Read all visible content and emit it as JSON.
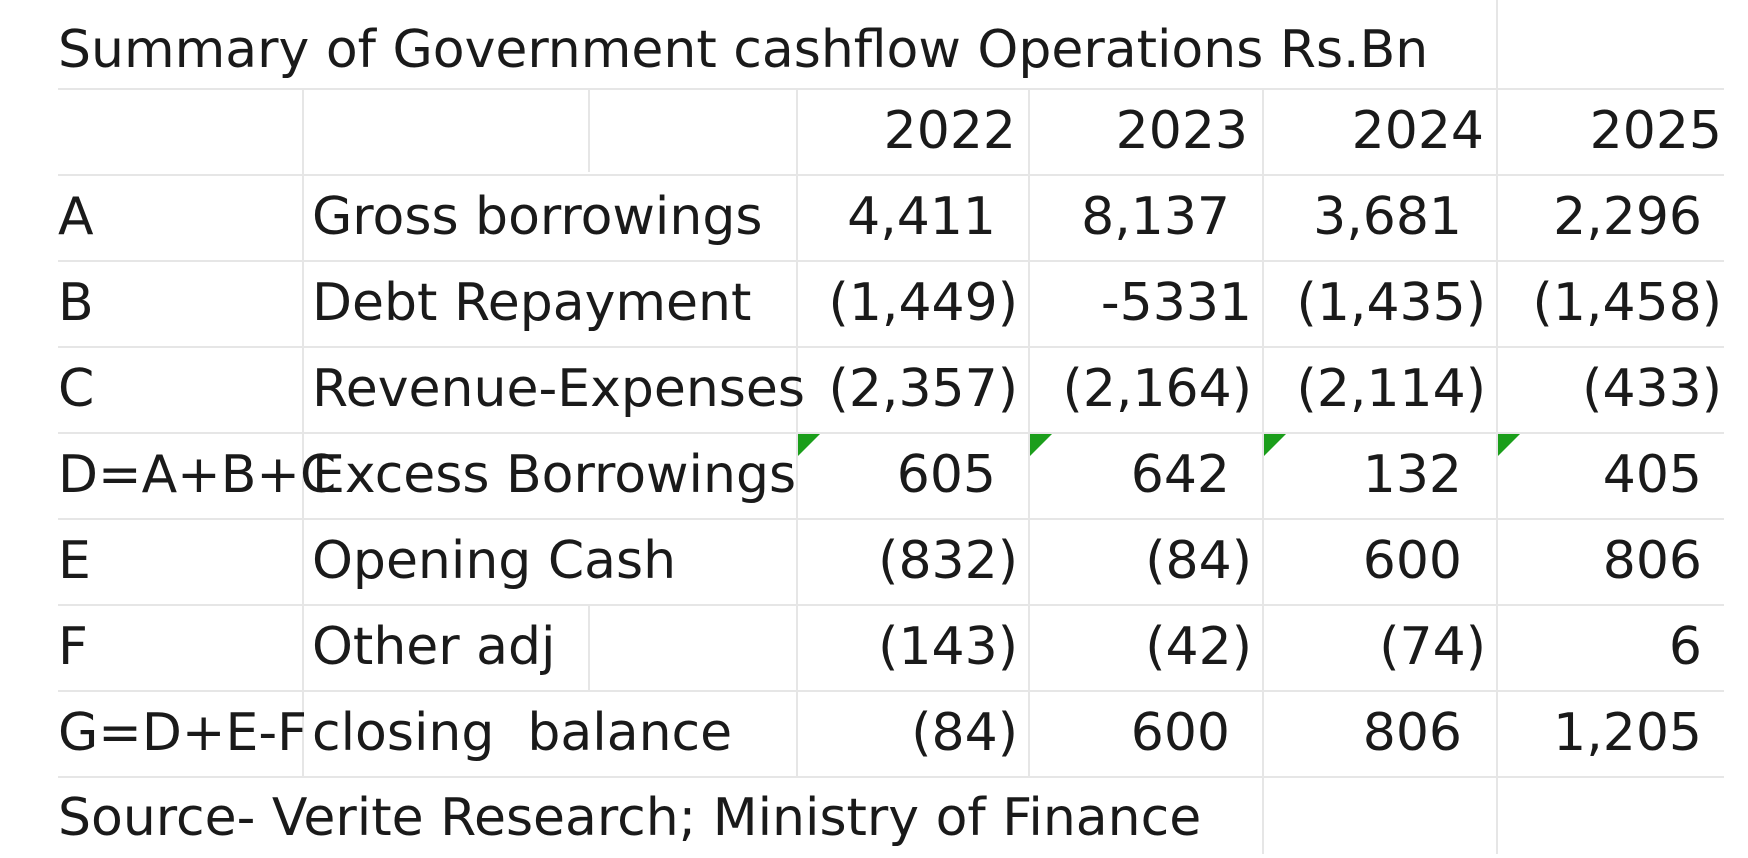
{
  "title": "Summary of Government cashflow Operations Rs.Bn",
  "years": [
    "2022",
    "2023",
    "2024",
    "2025"
  ],
  "rows": [
    {
      "code": "A",
      "label": "Gross borrowings",
      "values": [
        "4,411",
        "8,137",
        "3,681",
        "2,296"
      ]
    },
    {
      "code": "B",
      "label": "Debt Repayment",
      "values": [
        "(1,449)",
        "-5331",
        "(1,435)",
        "(1,458)"
      ]
    },
    {
      "code": "C",
      "label": "Revenue-Expenses",
      "values": [
        "(2,357)",
        "(2,164)",
        "(2,114)",
        "(433)"
      ]
    },
    {
      "code": "D=A+B+C",
      "label": "Excess Borrowings",
      "values": [
        "605",
        "642",
        "132",
        "405"
      ]
    },
    {
      "code": "E",
      "label": "Opening Cash",
      "values": [
        "(832)",
        "(84)",
        "600",
        "806"
      ]
    },
    {
      "code": "F",
      "label": "Other adj",
      "values": [
        "(143)",
        "(42)",
        "(74)",
        "6"
      ]
    },
    {
      "code": "G=D+E-F",
      "label": "closing  balance",
      "values": [
        "(84)",
        "600",
        "806",
        "1,205"
      ]
    }
  ],
  "source": "Source- Verite Research; Ministry of Finance",
  "colors": {
    "gridline": "#e6e6e6",
    "error_indicator": "#1b9e1b"
  }
}
